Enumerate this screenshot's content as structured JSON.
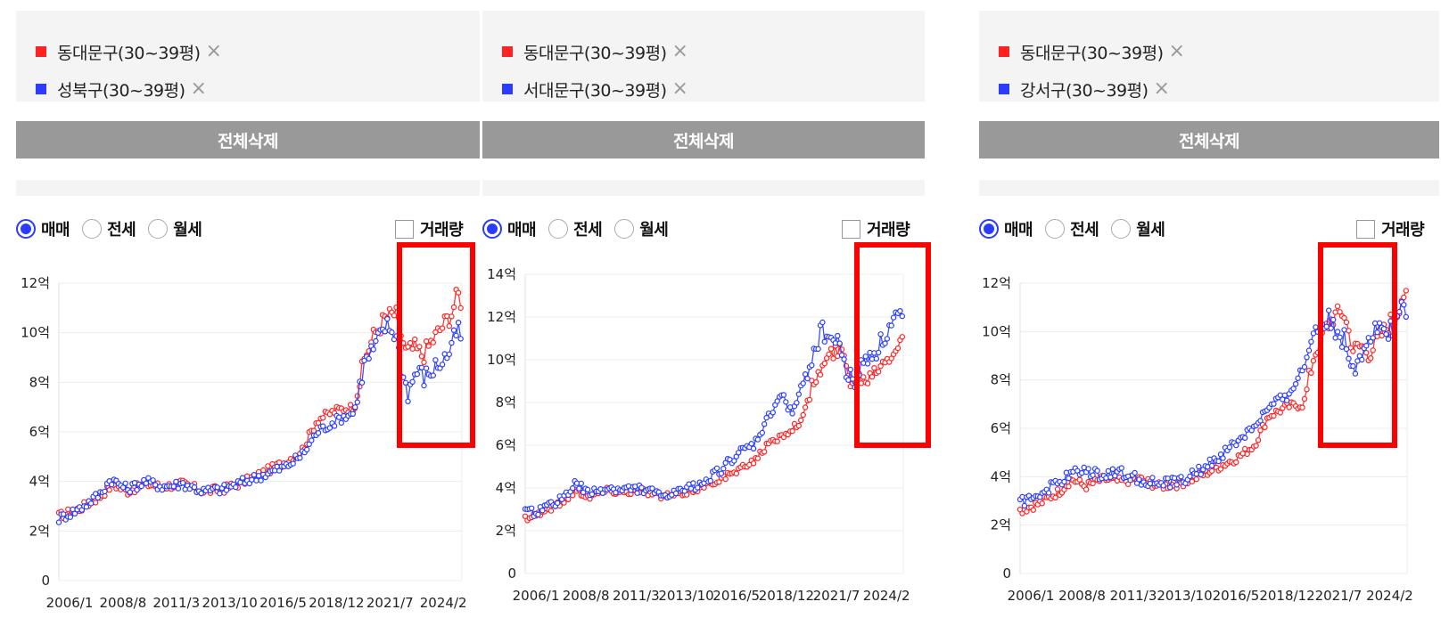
{
  "colors": {
    "series_a": "#ff2222",
    "series_b": "#2a3dff",
    "highlight": "#ff0000"
  },
  "panels": [
    {
      "legend": [
        {
          "label": "동대문구(30~39평)",
          "color": "#ff2222"
        },
        {
          "label": "성북구(30~39평)",
          "color": "#2a3dff"
        }
      ],
      "remove_icon": "×",
      "clear_all": "전체삭제",
      "radios": [
        {
          "label": "매매",
          "checked": true
        },
        {
          "label": "전세",
          "checked": false
        },
        {
          "label": "월세",
          "checked": false
        }
      ],
      "volume_label": "거래량",
      "chart_data": {
        "type": "line",
        "ylim": [
          0,
          12
        ],
        "y_ticks": [
          "0",
          "2억",
          "4억",
          "6억",
          "8억",
          "10억",
          "12억"
        ],
        "x_ticks": [
          "2006/1",
          "2008/8",
          "2011/3",
          "2013/10",
          "2016/5",
          "2018/12",
          "2021/7",
          "2024/2"
        ],
        "x_range": [
          2006.0,
          2025.5
        ],
        "series": [
          {
            "name": "동대문구(30~39평)",
            "color": "#ff2222",
            "anchors": [
              [
                2006.0,
                2.6
              ],
              [
                2007.0,
                2.9
              ],
              [
                2008.0,
                3.4
              ],
              [
                2008.6,
                3.9
              ],
              [
                2009.3,
                3.6
              ],
              [
                2010.2,
                3.9
              ],
              [
                2011.0,
                3.8
              ],
              [
                2012.0,
                3.9
              ],
              [
                2013.0,
                3.6
              ],
              [
                2014.0,
                3.7
              ],
              [
                2015.0,
                4.0
              ],
              [
                2016.0,
                4.4
              ],
              [
                2017.0,
                4.8
              ],
              [
                2017.8,
                5.3
              ],
              [
                2018.5,
                6.5
              ],
              [
                2019.5,
                6.9
              ],
              [
                2020.3,
                7.0
              ],
              [
                2020.8,
                9.0
              ],
              [
                2021.3,
                10.0
              ],
              [
                2021.8,
                10.6
              ],
              [
                2022.3,
                10.8
              ],
              [
                2022.8,
                9.2
              ],
              [
                2023.2,
                9.4
              ],
              [
                2023.6,
                9.1
              ],
              [
                2024.0,
                9.6
              ],
              [
                2024.5,
                10.2
              ],
              [
                2025.0,
                10.8
              ],
              [
                2025.3,
                11.6
              ],
              [
                2025.5,
                11.2
              ]
            ],
            "noise": 0.18
          },
          {
            "name": "성북구(30~39평)",
            "color": "#2a3dff",
            "anchors": [
              [
                2006.0,
                2.5
              ],
              [
                2007.0,
                2.9
              ],
              [
                2008.0,
                3.5
              ],
              [
                2008.5,
                4.1
              ],
              [
                2009.3,
                3.7
              ],
              [
                2010.2,
                4.0
              ],
              [
                2011.0,
                3.8
              ],
              [
                2012.0,
                3.9
              ],
              [
                2013.0,
                3.6
              ],
              [
                2014.0,
                3.7
              ],
              [
                2015.0,
                4.0
              ],
              [
                2016.0,
                4.3
              ],
              [
                2017.0,
                4.6
              ],
              [
                2017.8,
                5.1
              ],
              [
                2018.5,
                6.0
              ],
              [
                2019.5,
                6.5
              ],
              [
                2020.3,
                6.8
              ],
              [
                2020.8,
                8.8
              ],
              [
                2021.3,
                9.4
              ],
              [
                2021.8,
                10.3
              ],
              [
                2022.3,
                10.0
              ],
              [
                2022.6,
                8.4
              ],
              [
                2022.9,
                7.6
              ],
              [
                2023.3,
                8.5
              ],
              [
                2023.7,
                8.2
              ],
              [
                2024.2,
                8.6
              ],
              [
                2024.7,
                9.0
              ],
              [
                2025.0,
                9.4
              ],
              [
                2025.3,
                10.2
              ],
              [
                2025.5,
                9.6
              ]
            ],
            "noise": 0.2
          }
        ],
        "highlight_range": {
          "x": [
            2023.2,
            2026.3
          ],
          "y": [
            4.9,
            13.3
          ]
        }
      }
    },
    {
      "legend": [
        {
          "label": "동대문구(30~39평)",
          "color": "#ff2222"
        },
        {
          "label": "서대문구(30~39평)",
          "color": "#2a3dff"
        }
      ],
      "remove_icon": "×",
      "clear_all": "전체삭제",
      "radios": [
        {
          "label": "매매",
          "checked": true
        },
        {
          "label": "전세",
          "checked": false
        },
        {
          "label": "월세",
          "checked": false
        }
      ],
      "volume_label": "거래량",
      "chart_data": {
        "type": "line",
        "ylim": [
          0,
          14
        ],
        "y_ticks": [
          "0",
          "2억",
          "4억",
          "6억",
          "8억",
          "10억",
          "12억",
          "14억"
        ],
        "x_ticks": [
          "2006/1",
          "2008/8",
          "2011/3",
          "2013/10",
          "2016/5",
          "2018/12",
          "2021/7",
          "2024/2"
        ],
        "x_range": [
          2006.0,
          2025.5
        ],
        "series": [
          {
            "name": "동대문구(30~39평)",
            "color": "#ff2222",
            "anchors": [
              [
                2006.0,
                2.6
              ],
              [
                2007.0,
                2.9
              ],
              [
                2008.0,
                3.4
              ],
              [
                2008.6,
                3.9
              ],
              [
                2009.3,
                3.6
              ],
              [
                2010.2,
                3.9
              ],
              [
                2011.0,
                3.8
              ],
              [
                2012.0,
                3.9
              ],
              [
                2013.0,
                3.6
              ],
              [
                2014.0,
                3.7
              ],
              [
                2015.0,
                4.0
              ],
              [
                2016.0,
                4.4
              ],
              [
                2017.0,
                4.8
              ],
              [
                2017.8,
                5.3
              ],
              [
                2018.5,
                6.0
              ],
              [
                2019.5,
                6.6
              ],
              [
                2020.3,
                7.2
              ],
              [
                2020.8,
                8.8
              ],
              [
                2021.3,
                9.6
              ],
              [
                2021.8,
                10.3
              ],
              [
                2022.3,
                10.5
              ],
              [
                2022.8,
                9.0
              ],
              [
                2023.2,
                9.2
              ],
              [
                2023.6,
                9.1
              ],
              [
                2024.0,
                9.5
              ],
              [
                2024.5,
                10.0
              ],
              [
                2025.0,
                10.4
              ],
              [
                2025.3,
                10.9
              ],
              [
                2025.5,
                11.1
              ]
            ],
            "noise": 0.15
          },
          {
            "name": "서대문구(30~39평)",
            "color": "#2a3dff",
            "anchors": [
              [
                2006.0,
                2.8
              ],
              [
                2007.0,
                3.0
              ],
              [
                2008.0,
                3.6
              ],
              [
                2008.6,
                4.2
              ],
              [
                2009.3,
                3.7
              ],
              [
                2010.2,
                4.0
              ],
              [
                2011.0,
                3.9
              ],
              [
                2012.0,
                4.0
              ],
              [
                2013.0,
                3.6
              ],
              [
                2014.0,
                3.8
              ],
              [
                2015.0,
                4.2
              ],
              [
                2016.0,
                4.8
              ],
              [
                2017.0,
                5.6
              ],
              [
                2017.8,
                6.0
              ],
              [
                2018.5,
                7.2
              ],
              [
                2019.2,
                8.4
              ],
              [
                2019.8,
                7.5
              ],
              [
                2020.3,
                8.8
              ],
              [
                2020.8,
                10.2
              ],
              [
                2021.3,
                11.4
              ],
              [
                2021.8,
                11.0
              ],
              [
                2022.3,
                10.6
              ],
              [
                2022.6,
                9.3
              ],
              [
                2022.9,
                9.0
              ],
              [
                2023.3,
                9.6
              ],
              [
                2023.7,
                10.2
              ],
              [
                2024.2,
                10.6
              ],
              [
                2024.7,
                11.3
              ],
              [
                2025.0,
                11.8
              ],
              [
                2025.3,
                12.2
              ],
              [
                2025.5,
                11.4
              ]
            ],
            "noise": 0.22
          }
        ],
        "highlight_range": {
          "x": [
            2023.2,
            2026.3
          ],
          "y": [
            6.1,
            15.0
          ]
        }
      }
    },
    {
      "legend": [
        {
          "label": "동대문구(30~39평)",
          "color": "#ff2222"
        },
        {
          "label": "강서구(30~39평)",
          "color": "#2a3dff"
        }
      ],
      "remove_icon": "×",
      "clear_all": "전체삭제",
      "radios": [
        {
          "label": "매매",
          "checked": true
        },
        {
          "label": "전세",
          "checked": false
        },
        {
          "label": "월세",
          "checked": false
        }
      ],
      "volume_label": "거래량",
      "chart_data": {
        "type": "line",
        "ylim": [
          0,
          12
        ],
        "y_ticks": [
          "0",
          "2억",
          "4억",
          "6억",
          "8억",
          "10억",
          "12억"
        ],
        "x_ticks": [
          "2006/1",
          "2008/8",
          "2011/3",
          "2013/10",
          "2016/5",
          "2018/12",
          "2021/7",
          "2024/2"
        ],
        "x_range": [
          2006.0,
          2025.5
        ],
        "series": [
          {
            "name": "동대문구(30~39평)",
            "color": "#ff2222",
            "anchors": [
              [
                2006.0,
                2.6
              ],
              [
                2007.0,
                2.9
              ],
              [
                2008.0,
                3.4
              ],
              [
                2008.6,
                3.9
              ],
              [
                2009.3,
                3.6
              ],
              [
                2010.2,
                3.9
              ],
              [
                2011.0,
                3.8
              ],
              [
                2012.0,
                3.9
              ],
              [
                2013.0,
                3.6
              ],
              [
                2014.0,
                3.7
              ],
              [
                2015.0,
                4.0
              ],
              [
                2016.0,
                4.4
              ],
              [
                2017.0,
                4.8
              ],
              [
                2017.8,
                5.3
              ],
              [
                2018.5,
                6.5
              ],
              [
                2019.5,
                6.9
              ],
              [
                2020.3,
                7.0
              ],
              [
                2020.8,
                9.0
              ],
              [
                2021.3,
                10.0
              ],
              [
                2021.8,
                10.6
              ],
              [
                2022.3,
                10.8
              ],
              [
                2022.8,
                9.2
              ],
              [
                2023.2,
                9.4
              ],
              [
                2023.6,
                9.1
              ],
              [
                2024.0,
                9.6
              ],
              [
                2024.5,
                10.2
              ],
              [
                2025.0,
                10.8
              ],
              [
                2025.3,
                11.6
              ],
              [
                2025.5,
                11.2
              ]
            ],
            "noise": 0.18
          },
          {
            "name": "강서구(30~39평)",
            "color": "#2a3dff",
            "anchors": [
              [
                2006.0,
                2.9
              ],
              [
                2007.0,
                3.3
              ],
              [
                2008.0,
                3.8
              ],
              [
                2009.0,
                4.3
              ],
              [
                2010.0,
                4.1
              ],
              [
                2011.0,
                4.2
              ],
              [
                2012.0,
                3.9
              ],
              [
                2013.0,
                3.7
              ],
              [
                2014.0,
                3.8
              ],
              [
                2015.0,
                4.2
              ],
              [
                2016.0,
                4.8
              ],
              [
                2017.0,
                5.5
              ],
              [
                2017.8,
                6.1
              ],
              [
                2018.5,
                6.8
              ],
              [
                2019.5,
                7.4
              ],
              [
                2020.3,
                8.5
              ],
              [
                2020.8,
                10.0
              ],
              [
                2021.3,
                10.6
              ],
              [
                2021.8,
                10.2
              ],
              [
                2022.3,
                9.7
              ],
              [
                2022.6,
                9.0
              ],
              [
                2022.9,
                8.6
              ],
              [
                2023.3,
                9.4
              ],
              [
                2023.7,
                9.9
              ],
              [
                2024.2,
                10.1
              ],
              [
                2024.7,
                10.2
              ],
              [
                2025.0,
                10.5
              ],
              [
                2025.3,
                11.1
              ],
              [
                2025.5,
                10.6
              ]
            ],
            "noise": 0.22
          }
        ],
        "highlight_range": {
          "x": [
            2023.5,
            2026.8
          ],
          "y": [
            4.8,
            13.3
          ]
        }
      }
    }
  ]
}
